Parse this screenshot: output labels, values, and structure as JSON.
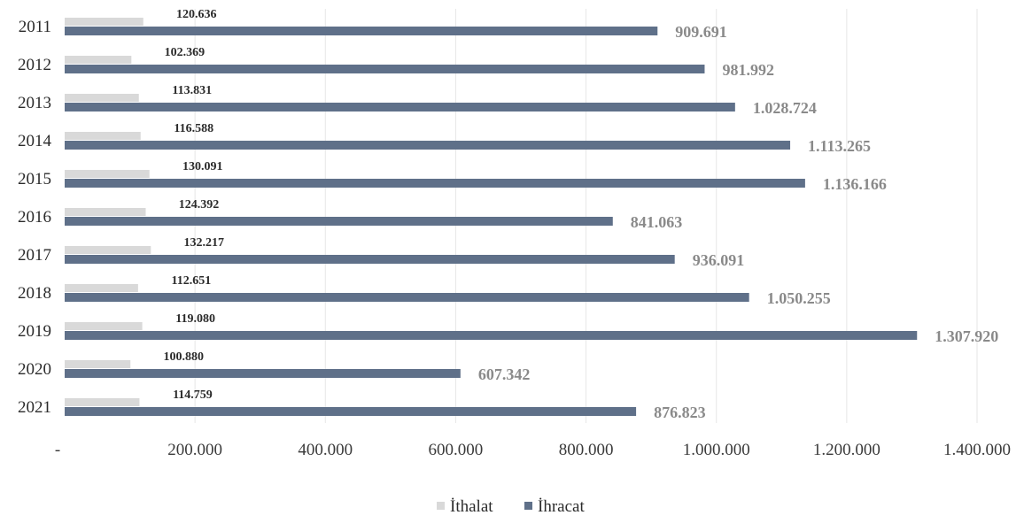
{
  "chart_data": {
    "type": "bar",
    "orientation": "horizontal",
    "categories": [
      "2011",
      "2012",
      "2013",
      "2014",
      "2015",
      "2016",
      "2017",
      "2018",
      "2019",
      "2020",
      "2021"
    ],
    "series": [
      {
        "name": "İthalat",
        "color": "#d9d9d9",
        "values": [
          120636,
          102369,
          113831,
          116588,
          130091,
          124392,
          132217,
          112651,
          119080,
          100880,
          114759
        ],
        "labels": [
          "120.636",
          "102.369",
          "113.831",
          "116.588",
          "130.091",
          "124.392",
          "132.217",
          "112.651",
          "119.080",
          "100.880",
          "114.759"
        ]
      },
      {
        "name": "İhracat",
        "color": "#5f7089",
        "values": [
          909691,
          981992,
          1028724,
          1113265,
          1136166,
          841063,
          936091,
          1050255,
          1307920,
          607342,
          876823
        ],
        "labels": [
          "909.691",
          "981.992",
          "1.028.724",
          "1.113.265",
          "1.136.166",
          "841.063",
          "936.091",
          "1.050.255",
          "1.307.920",
          "607.342",
          "876.823"
        ]
      }
    ],
    "xlim": [
      0,
      1400000
    ],
    "xticks": [
      0,
      200000,
      400000,
      600000,
      800000,
      1000000,
      1200000,
      1400000
    ],
    "xtick_labels": [
      "-",
      "200.000",
      "400.000",
      "600.000",
      "800.000",
      "1.000.000",
      "1.200.000",
      "1.400.000"
    ],
    "grid": true,
    "legend_position": "bottom"
  }
}
